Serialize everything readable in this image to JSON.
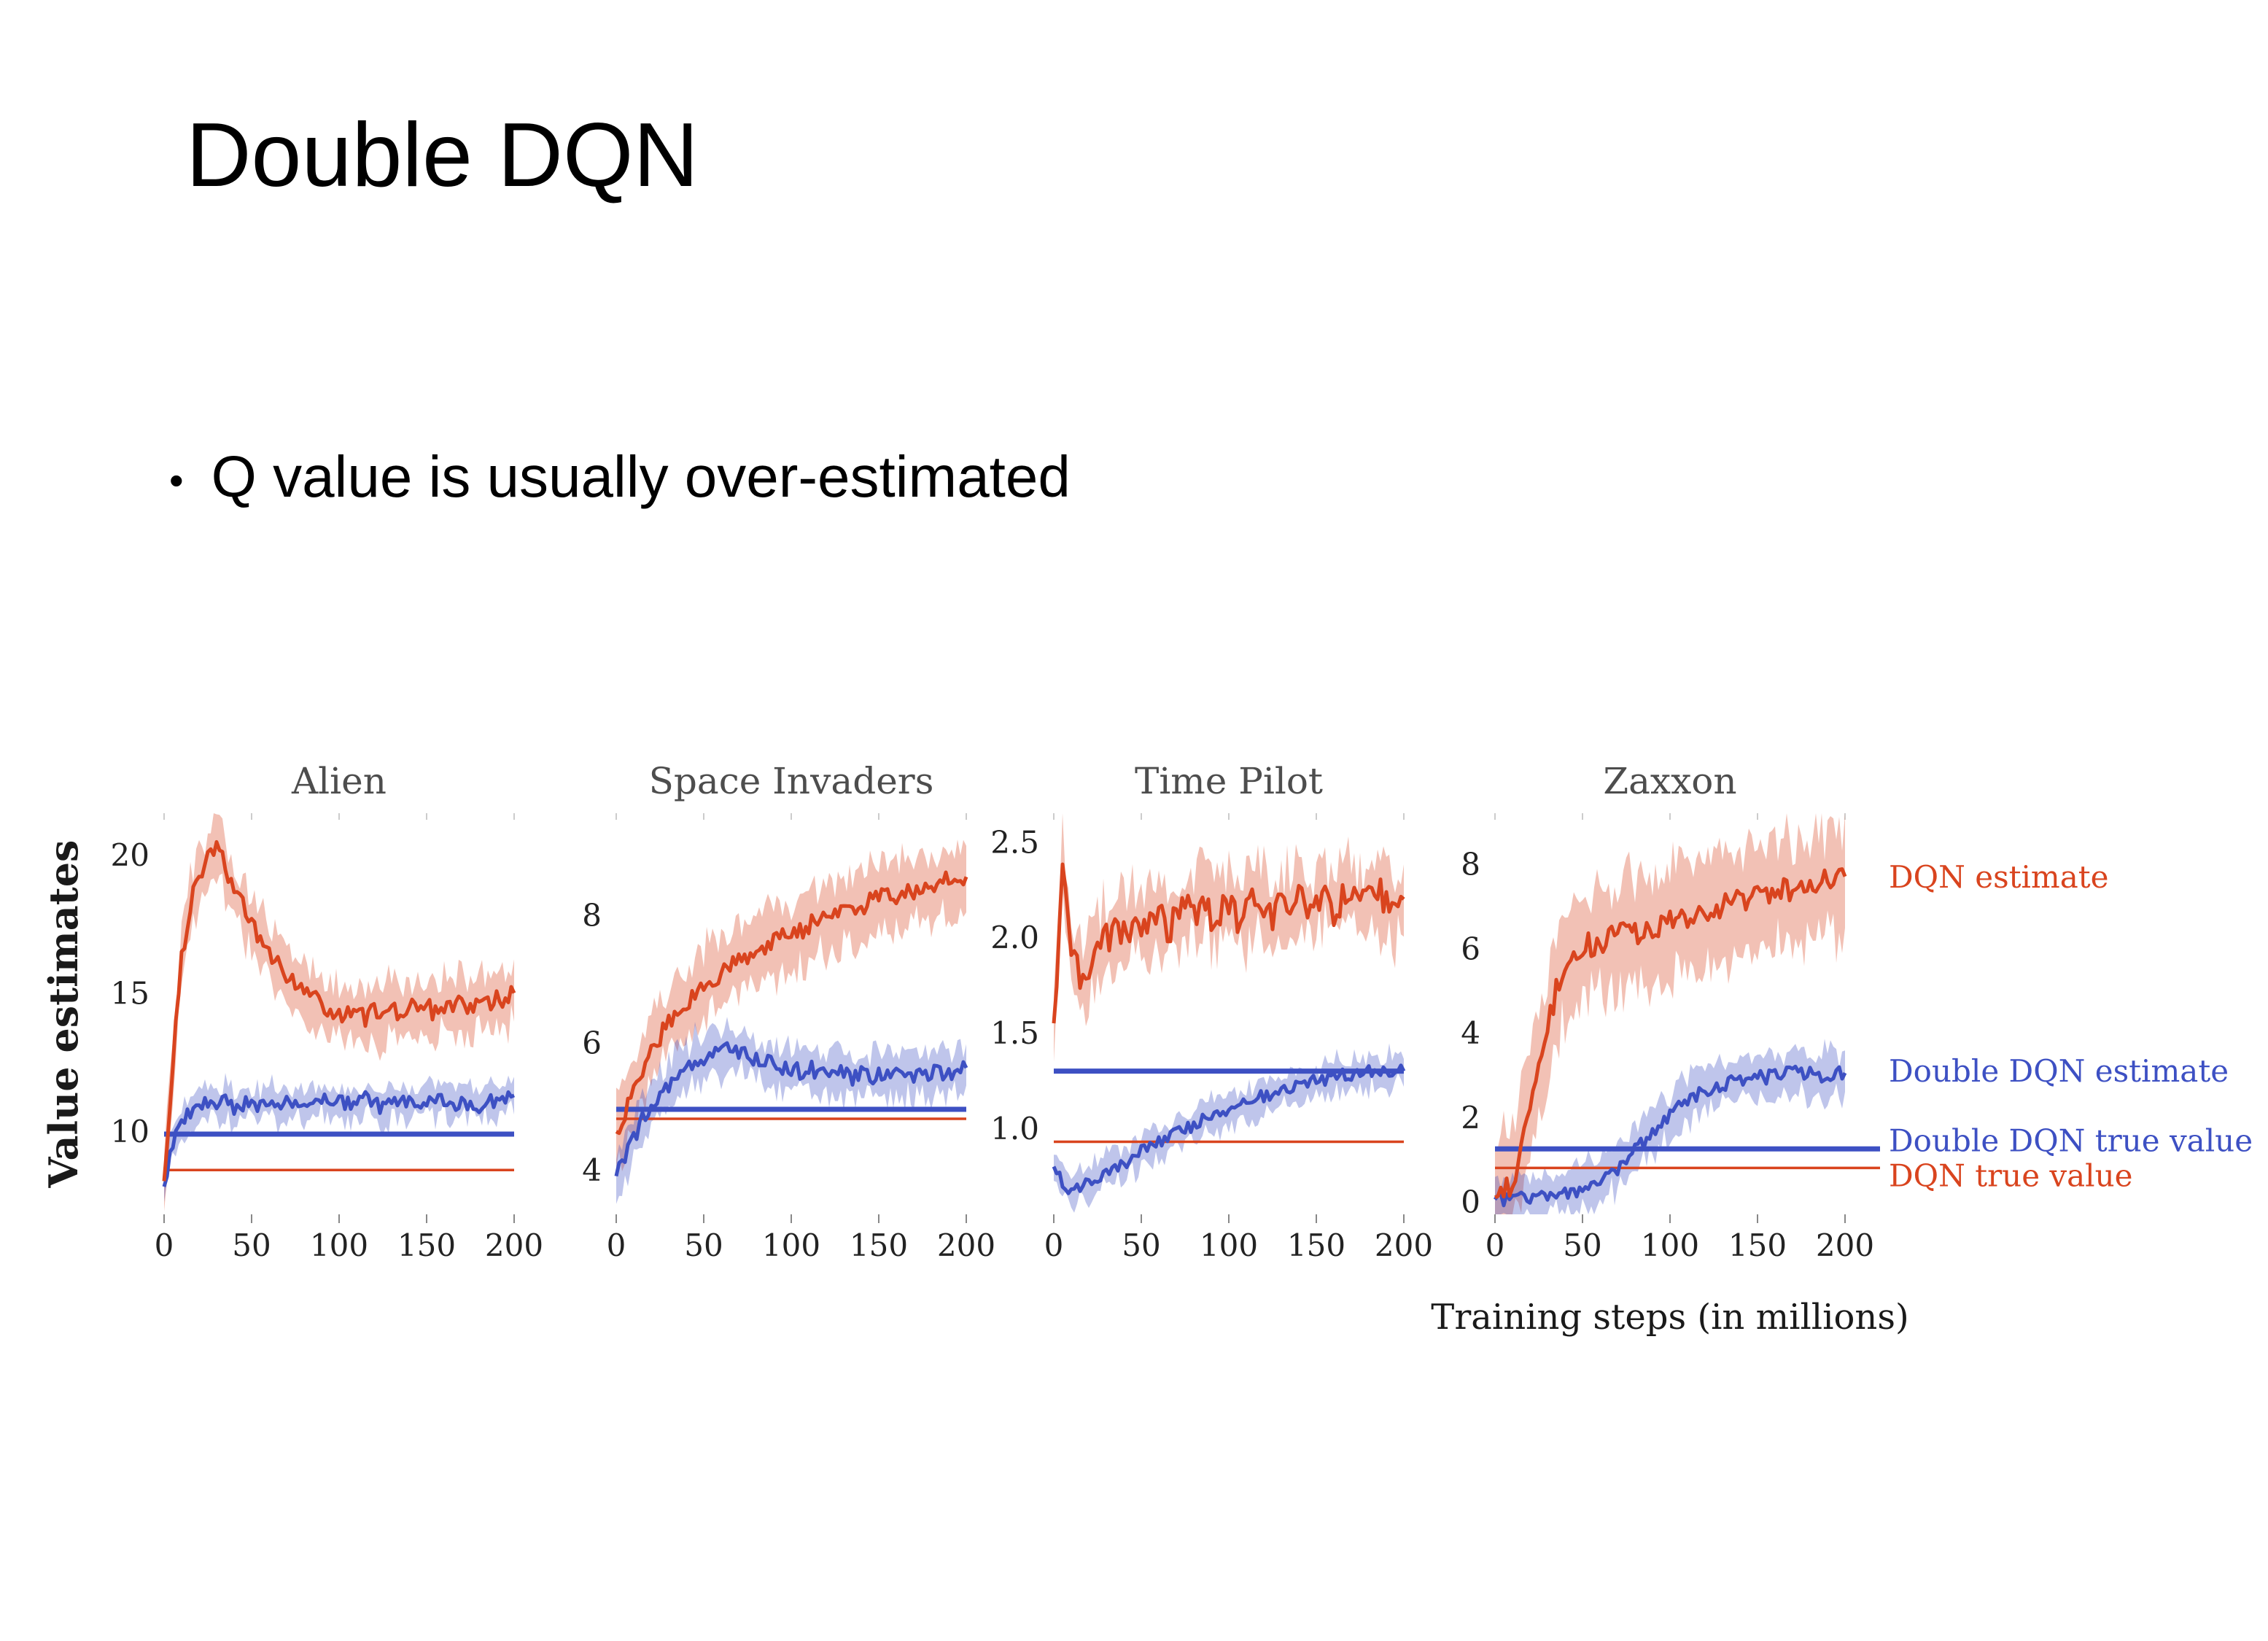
{
  "slide": {
    "title": "Double DQN",
    "bullet_glyph": "•",
    "bullet": "Q value is usually over-estimated"
  },
  "chart_data": {
    "type": "line",
    "ylabel": "Value estimates",
    "xlabel": "Training steps (in millions)",
    "colors": {
      "dqn": "#d9441e",
      "ddqn": "#3d50c3",
      "dqn_fill": "rgba(217,68,30,0.33)",
      "ddqn_fill": "rgba(61,80,195,0.33)"
    },
    "legend": [
      {
        "label": "DQN estimate",
        "series": "dqn",
        "anchor": 7.7
      },
      {
        "label": "Double DQN estimate",
        "series": "ddqn",
        "anchor": 3.1
      },
      {
        "label": "Double DQN true value",
        "series": "ddqn",
        "anchor": 1.45
      },
      {
        "label": "DQN true value",
        "series": "dqn",
        "anchor": 0.62
      }
    ],
    "charts": [
      {
        "title": "Alien",
        "xlim": [
          0,
          200
        ],
        "ylim": [
          7,
          21.5
        ],
        "xticks": [
          "0",
          "50",
          "100",
          "150",
          "200"
        ],
        "yticks": [
          "10",
          "15",
          "20"
        ],
        "dqn_true": 8.6,
        "ddqn_true": 9.9,
        "dqn_band": 1.0,
        "ddqn_band": 0.55,
        "dqn_jitter": 0.35,
        "ddqn_jitter": 0.28,
        "dqn": [
          8.2,
          12.5,
          16.2,
          18.2,
          19.2,
          19.9,
          20.4,
          19.6,
          18.7,
          18.1,
          17.5,
          17.0,
          16.4,
          16.0,
          15.7,
          15.3,
          15.0,
          14.8,
          14.6,
          14.4,
          14.3,
          14.2,
          14.4,
          14.1,
          14.3,
          14.2,
          14.5,
          14.3,
          14.6,
          14.4,
          14.5,
          14.3,
          14.6,
          14.5,
          14.7,
          14.5,
          14.8,
          14.6,
          14.9,
          14.7,
          15.0
        ],
        "ddqn": [
          8.0,
          9.6,
          10.3,
          10.7,
          10.9,
          11.0,
          10.9,
          11.1,
          10.8,
          11.0,
          11.1,
          10.9,
          11.2,
          10.9,
          11.0,
          11.1,
          10.8,
          11.0,
          11.2,
          10.9,
          11.0,
          11.1,
          10.9,
          11.2,
          11.0,
          10.8,
          11.1,
          11.0,
          11.2,
          10.9,
          11.1,
          11.0,
          11.2,
          10.9,
          11.0,
          11.1,
          10.9,
          11.2,
          11.0,
          11.1,
          11.3
        ]
      },
      {
        "title": "Space Invaders",
        "xlim": [
          0,
          200
        ],
        "ylim": [
          3.3,
          9.6
        ],
        "xticks": [
          "0",
          "50",
          "100",
          "150",
          "200"
        ],
        "yticks": [
          "4",
          "6",
          "8"
        ],
        "dqn_true": 4.8,
        "ddqn_true": 4.95,
        "dqn_band": 0.55,
        "ddqn_band": 0.35,
        "dqn_jitter": 0.15,
        "ddqn_jitter": 0.13,
        "dqn": [
          4.6,
          4.9,
          5.3,
          5.6,
          5.9,
          6.1,
          6.3,
          6.5,
          6.6,
          6.8,
          6.9,
          7.0,
          7.1,
          7.2,
          7.3,
          7.35,
          7.45,
          7.5,
          7.6,
          7.65,
          7.7,
          7.75,
          7.85,
          7.9,
          7.95,
          8.0,
          8.1,
          8.05,
          8.15,
          8.2,
          8.25,
          8.3,
          8.25,
          8.35,
          8.4,
          8.45,
          8.4,
          8.5,
          8.55,
          8.5,
          8.6
        ],
        "ddqn": [
          3.9,
          4.2,
          4.5,
          4.8,
          5.0,
          5.2,
          5.35,
          5.5,
          5.6,
          5.7,
          5.75,
          5.8,
          5.85,
          5.9,
          5.85,
          5.8,
          5.75,
          5.7,
          5.65,
          5.6,
          5.6,
          5.55,
          5.6,
          5.55,
          5.5,
          5.55,
          5.5,
          5.45,
          5.5,
          5.45,
          5.5,
          5.45,
          5.5,
          5.45,
          5.5,
          5.55,
          5.5,
          5.55,
          5.5,
          5.55,
          5.6
        ]
      },
      {
        "title": "Time Pilot",
        "xlim": [
          0,
          200
        ],
        "ylim": [
          0.55,
          2.65
        ],
        "xticks": [
          "0",
          "50",
          "100",
          "150",
          "200"
        ],
        "yticks": [
          "1.0",
          "1.5",
          "2.0",
          "2.5"
        ],
        "dqn_true": 0.93,
        "ddqn_true": 1.3,
        "dqn_band": 0.18,
        "ddqn_band": 0.08,
        "dqn_jitter": 0.09,
        "ddqn_jitter": 0.035,
        "dqn": [
          1.55,
          2.35,
          1.95,
          1.75,
          1.85,
          1.95,
          2.0,
          2.05,
          2.0,
          2.1,
          2.05,
          2.1,
          2.15,
          2.05,
          2.1,
          2.15,
          2.1,
          2.2,
          2.1,
          2.15,
          2.2,
          2.1,
          2.15,
          2.2,
          2.15,
          2.1,
          2.2,
          2.15,
          2.2,
          2.15,
          2.2,
          2.25,
          2.15,
          2.2,
          2.25,
          2.15,
          2.2,
          2.25,
          2.2,
          2.15,
          2.2
        ],
        "ddqn": [
          0.8,
          0.72,
          0.68,
          0.7,
          0.72,
          0.75,
          0.78,
          0.8,
          0.82,
          0.85,
          0.88,
          0.9,
          0.92,
          0.95,
          0.97,
          1.0,
          1.02,
          1.05,
          1.07,
          1.08,
          1.1,
          1.12,
          1.13,
          1.15,
          1.17,
          1.18,
          1.2,
          1.22,
          1.22,
          1.24,
          1.25,
          1.26,
          1.27,
          1.28,
          1.28,
          1.29,
          1.3,
          1.3,
          1.3,
          1.31,
          1.3
        ]
      },
      {
        "title": "Zaxxon",
        "xlim": [
          0,
          200
        ],
        "ylim": [
          -0.3,
          9.2
        ],
        "xticks": [
          "0",
          "50",
          "100",
          "150",
          "200"
        ],
        "yticks": [
          "0",
          "2",
          "4",
          "6",
          "8"
        ],
        "dqn_true": 0.8,
        "ddqn_true": 1.25,
        "dqn_band": 1.25,
        "ddqn_band": 0.5,
        "dqn_jitter": 0.3,
        "ddqn_jitter": 0.18,
        "dqn": [
          0.1,
          0.2,
          0.5,
          1.2,
          2.2,
          3.2,
          4.2,
          5.0,
          5.5,
          5.8,
          6.0,
          6.1,
          6.2,
          6.2,
          6.3,
          6.3,
          6.4,
          6.4,
          6.5,
          6.5,
          6.6,
          6.7,
          6.7,
          6.8,
          6.9,
          7.0,
          7.0,
          7.1,
          7.1,
          7.2,
          7.2,
          7.3,
          7.3,
          7.4,
          7.4,
          7.5,
          7.5,
          7.6,
          7.6,
          7.6,
          7.7
        ],
        "ddqn": [
          0.05,
          0.05,
          0.08,
          0.1,
          0.1,
          0.12,
          0.15,
          0.18,
          0.2,
          0.25,
          0.3,
          0.4,
          0.5,
          0.65,
          0.8,
          1.0,
          1.2,
          1.4,
          1.6,
          1.8,
          2.0,
          2.2,
          2.4,
          2.5,
          2.6,
          2.7,
          2.8,
          2.8,
          2.9,
          2.9,
          3.0,
          2.95,
          3.0,
          3.0,
          3.05,
          3.0,
          3.05,
          3.0,
          3.05,
          3.0,
          3.05
        ]
      }
    ]
  }
}
